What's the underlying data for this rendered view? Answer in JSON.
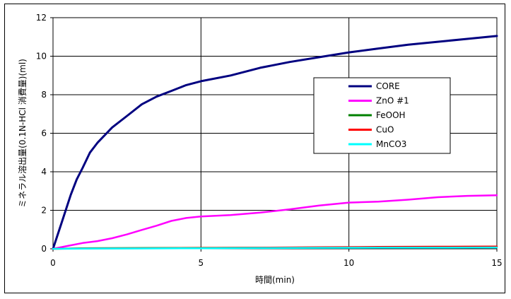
{
  "chart_data": {
    "type": "line",
    "title": "",
    "xlabel": "時間(min)",
    "ylabel": "ミネラル溶出量(0.1N-HCl 消費量)(ml)",
    "xlim": [
      0,
      15
    ],
    "ylim": [
      0,
      12
    ],
    "xticks": [
      "0",
      "5",
      "10",
      "15"
    ],
    "yticks": [
      "0",
      "2",
      "4",
      "6",
      "8",
      "10",
      "12"
    ],
    "grid": true,
    "legend_position": "right",
    "series": [
      {
        "name": "CORE",
        "color": "#000080",
        "x": [
          0,
          0.3,
          0.6,
          0.8,
          1,
          1.25,
          1.5,
          2,
          2.5,
          3,
          3.5,
          4,
          4.5,
          5,
          6,
          7,
          8,
          9,
          10,
          11,
          12,
          13,
          14,
          15
        ],
        "values": [
          0,
          1.4,
          2.8,
          3.6,
          4.2,
          5.0,
          5.5,
          6.3,
          6.9,
          7.5,
          7.9,
          8.2,
          8.5,
          8.7,
          9.0,
          9.4,
          9.7,
          9.95,
          10.2,
          10.4,
          10.6,
          10.75,
          10.9,
          11.05
        ]
      },
      {
        "name": "ZnO #1",
        "color": "#ff00ff",
        "x": [
          0,
          0.5,
          1,
          1.5,
          2,
          2.5,
          3,
          3.5,
          4,
          4.5,
          5,
          6,
          7,
          8,
          9,
          10,
          11,
          12,
          13,
          14,
          15
        ],
        "values": [
          0,
          0.15,
          0.3,
          0.4,
          0.55,
          0.75,
          0.98,
          1.2,
          1.45,
          1.6,
          1.68,
          1.75,
          1.88,
          2.05,
          2.25,
          2.4,
          2.45,
          2.55,
          2.68,
          2.75,
          2.78
        ]
      },
      {
        "name": "FeOOH",
        "color": "#008000",
        "x": [
          0,
          1,
          3,
          5,
          7,
          9,
          11,
          13,
          15
        ],
        "values": [
          0,
          0.03,
          0.04,
          0.05,
          0.06,
          0.07,
          0.08,
          0.09,
          0.1
        ]
      },
      {
        "name": "CuO",
        "color": "#ff0000",
        "x": [
          0,
          1,
          3,
          5,
          7,
          9,
          11,
          13,
          15
        ],
        "values": [
          0,
          0.02,
          0.03,
          0.04,
          0.06,
          0.08,
          0.1,
          0.11,
          0.12
        ]
      },
      {
        "name": "MnCO3",
        "color": "#00ffff",
        "x": [
          0,
          1,
          3,
          5,
          7,
          9,
          11,
          13,
          15
        ],
        "values": [
          0,
          0.01,
          0.02,
          0.03,
          0.04,
          0.05,
          0.06,
          0.06,
          0.07
        ]
      }
    ]
  }
}
